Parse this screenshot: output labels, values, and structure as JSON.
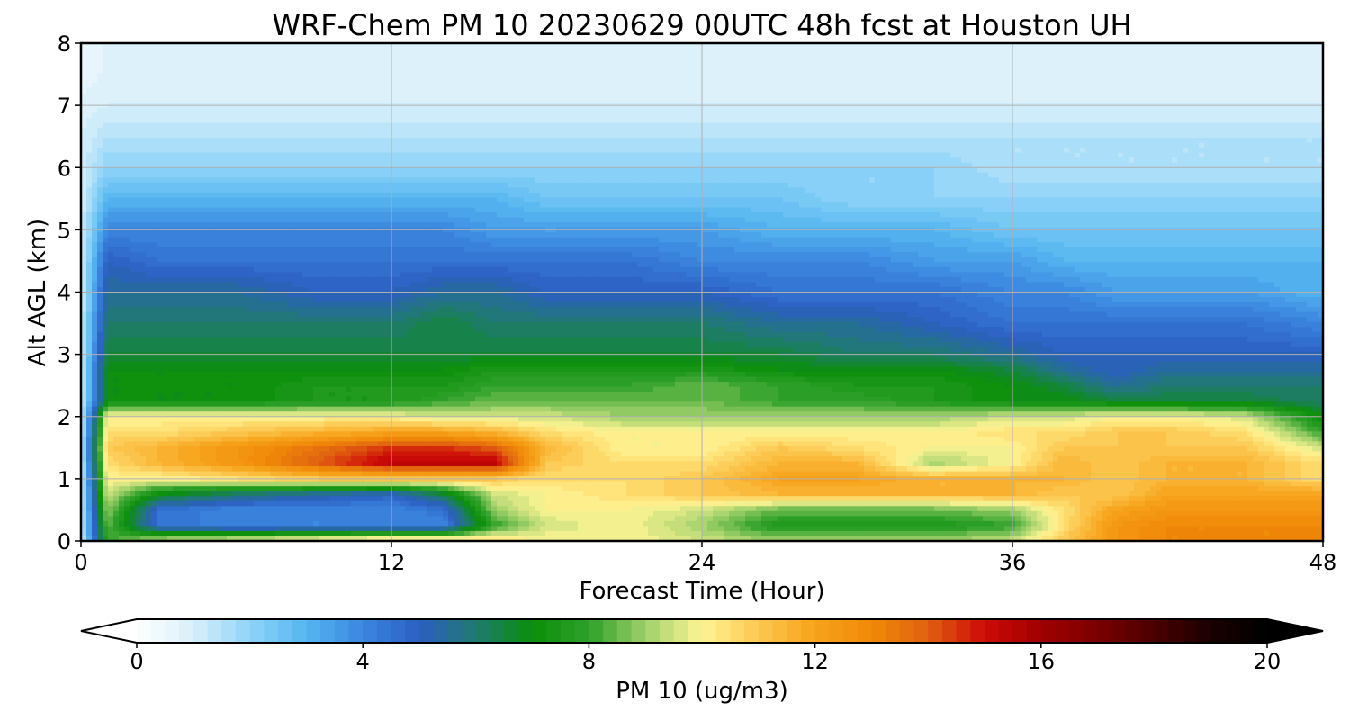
{
  "chart_data": {
    "type": "heatmap",
    "subtype": "filled-contour",
    "title": "WRF-Chem PM 10  20230629 00UTC 48h fcst at Houston UH",
    "xlabel": "Forecast Time (Hour)",
    "ylabel": "Alt AGL (km)",
    "xlim": [
      0,
      48
    ],
    "ylim": [
      0,
      8
    ],
    "xticks": [
      0,
      12,
      24,
      36,
      48
    ],
    "yticks": [
      0,
      1,
      2,
      3,
      4,
      5,
      6,
      7,
      8
    ],
    "grid": true,
    "x": [
      0,
      1,
      3,
      6,
      9,
      12,
      14,
      16,
      18,
      21,
      24,
      27,
      30,
      33,
      36,
      38,
      40,
      42,
      45,
      48
    ],
    "y": [
      0,
      0.25,
      0.5,
      0.75,
      1,
      1.25,
      1.5,
      1.75,
      2,
      2.25,
      2.5,
      2.75,
      3,
      3.5,
      4,
      4.5,
      5,
      5.5,
      6,
      6.5,
      7,
      7.5,
      8
    ],
    "z": [
      [
        1,
        8,
        9.5,
        10,
        10.5,
        11,
        11,
        10.5,
        10,
        10,
        9.5,
        9,
        9,
        9,
        9.5,
        11,
        12.5,
        13,
        13,
        13
      ],
      [
        1,
        8.5,
        4.5,
        4,
        4,
        4,
        4,
        8,
        9.5,
        10,
        9,
        7.5,
        7.5,
        7.5,
        8,
        10.5,
        12.5,
        13,
        13,
        13
      ],
      [
        1,
        9,
        4.5,
        4,
        4,
        4,
        4.5,
        9,
        10,
        10,
        9.5,
        8.5,
        8.5,
        8.5,
        9,
        10.5,
        12,
        12.5,
        12.5,
        12.5
      ],
      [
        1,
        9.5,
        7,
        6,
        5.5,
        5,
        6.5,
        9.5,
        10,
        10.5,
        11,
        11.5,
        11.5,
        11.5,
        11.5,
        11,
        11,
        12,
        12,
        12
      ],
      [
        1,
        10,
        10,
        10.5,
        11,
        11,
        11,
        11,
        10.5,
        10.5,
        11,
        12,
        12,
        11.5,
        11.5,
        11.5,
        11,
        11.5,
        11.5,
        10.5
      ],
      [
        1,
        10.5,
        11.5,
        12.5,
        14,
        15.5,
        15.5,
        15.5,
        11,
        10.5,
        10.5,
        11.5,
        11.5,
        9,
        10,
        11.5,
        11,
        11.5,
        11.5,
        10.5
      ],
      [
        1,
        11,
        11.5,
        12.5,
        13.5,
        14.5,
        14.5,
        14,
        11.5,
        10,
        10,
        11,
        10.5,
        10,
        10,
        11,
        11,
        11,
        11,
        9.5
      ],
      [
        1,
        10.5,
        10.5,
        11,
        11.5,
        12,
        12,
        11.5,
        10.5,
        10,
        10,
        10,
        10,
        10,
        10.5,
        10.5,
        11,
        11,
        10.5,
        8
      ],
      [
        1,
        10,
        10,
        10,
        10,
        10,
        9.5,
        9.5,
        9.5,
        9,
        9,
        9,
        9,
        9,
        9.5,
        9.5,
        10,
        10,
        9.5,
        7
      ],
      [
        1,
        7,
        7,
        7,
        7.5,
        7.5,
        8,
        8.5,
        8.5,
        8.5,
        8.5,
        8,
        8,
        7.5,
        7,
        7,
        6.5,
        6.5,
        6.5,
        6
      ],
      [
        1,
        7,
        7,
        7,
        7.5,
        7.5,
        7.5,
        8,
        8,
        8,
        8.5,
        8,
        7.5,
        7.5,
        7,
        6.5,
        5.5,
        6,
        6,
        6
      ],
      [
        1,
        7,
        7,
        7,
        7,
        7,
        7,
        7.5,
        7.5,
        7.5,
        7.5,
        7,
        7,
        7,
        6.5,
        5.5,
        5,
        5.5,
        5.5,
        5.5
      ],
      [
        1,
        6.5,
        6.5,
        6.5,
        6.5,
        6.5,
        6.5,
        6.5,
        6.5,
        6.5,
        6.5,
        6.5,
        6,
        6,
        5.5,
        5,
        5,
        5,
        5,
        5
      ],
      [
        1,
        6,
        6,
        6,
        6,
        6,
        6.5,
        6,
        6,
        6,
        6,
        5.5,
        5.5,
        5,
        4.5,
        4.5,
        4.5,
        4.5,
        4.5,
        4
      ],
      [
        1,
        5.5,
        5.5,
        5.5,
        5,
        5,
        5.5,
        5.5,
        5,
        5,
        5,
        4.5,
        4.5,
        4.5,
        4,
        4,
        3.5,
        3.5,
        3.5,
        3
      ],
      [
        1,
        5,
        4.5,
        4.5,
        4.5,
        4.5,
        4.5,
        4.5,
        4.5,
        4.5,
        4,
        4,
        4,
        3.5,
        3.5,
        3,
        3,
        3,
        3,
        3
      ],
      [
        1,
        4,
        4,
        4,
        4,
        4,
        4,
        3.5,
        3.5,
        3.5,
        3.5,
        3,
        3,
        3,
        2.5,
        2.5,
        2.5,
        2.5,
        2.5,
        2.5
      ],
      [
        1,
        3,
        3,
        3,
        3,
        3,
        3,
        3,
        2.5,
        2.5,
        2.5,
        2.5,
        2,
        2,
        2,
        2,
        2,
        2,
        2,
        2
      ],
      [
        1,
        2,
        2,
        2,
        2,
        2,
        2,
        2,
        2,
        2,
        2,
        2,
        2,
        2,
        1.5,
        1.5,
        1.5,
        1.5,
        1.5,
        1.5
      ],
      [
        1,
        1.5,
        1.5,
        1.5,
        1.5,
        1.5,
        1.5,
        1.5,
        1.5,
        1.5,
        1.5,
        1.5,
        1.5,
        1.5,
        1.5,
        1.5,
        1.5,
        1.5,
        1.5,
        1.5
      ],
      [
        0.8,
        1,
        1,
        1,
        1,
        1,
        1,
        1,
        1,
        1,
        1,
        1,
        1,
        1,
        1,
        1,
        1,
        1,
        1,
        1
      ],
      [
        0.6,
        0.8,
        0.8,
        0.8,
        0.8,
        0.8,
        0.8,
        0.8,
        0.8,
        0.8,
        0.8,
        0.8,
        0.8,
        0.8,
        0.8,
        0.8,
        0.8,
        0.8,
        0.8,
        0.8
      ],
      [
        0.6,
        0.8,
        0.8,
        0.8,
        0.8,
        0.8,
        0.8,
        0.8,
        0.8,
        0.8,
        0.8,
        0.8,
        0.8,
        0.8,
        0.8,
        0.8,
        0.8,
        0.8,
        0.8,
        0.8
      ]
    ],
    "colorbar": {
      "label": "PM 10  (ug/m3)",
      "min": 0,
      "max": 20,
      "ticks": [
        0,
        4,
        8,
        12,
        16,
        20
      ],
      "extend": "both",
      "levels": 80,
      "color_anchors": [
        {
          "v": 0,
          "c": "#ffffff"
        },
        {
          "v": 1,
          "c": "#d8effa"
        },
        {
          "v": 2,
          "c": "#8fd4f8"
        },
        {
          "v": 3,
          "c": "#55b6f0"
        },
        {
          "v": 4,
          "c": "#3b86df"
        },
        {
          "v": 5,
          "c": "#2c5fc2"
        },
        {
          "v": 6,
          "c": "#1f7a6e"
        },
        {
          "v": 7,
          "c": "#0a8f0a"
        },
        {
          "v": 8,
          "c": "#2ea02a"
        },
        {
          "v": 9,
          "c": "#9fd06a"
        },
        {
          "v": 10,
          "c": "#fff494"
        },
        {
          "v": 11,
          "c": "#fcc850"
        },
        {
          "v": 12,
          "c": "#f7a21a"
        },
        {
          "v": 13,
          "c": "#f08a08"
        },
        {
          "v": 14,
          "c": "#e06010"
        },
        {
          "v": 15,
          "c": "#cc0a08"
        },
        {
          "v": 16,
          "c": "#a00000"
        },
        {
          "v": 17,
          "c": "#7a0000"
        },
        {
          "v": 18,
          "c": "#4a0000"
        },
        {
          "v": 19,
          "c": "#1a0000"
        },
        {
          "v": 20,
          "c": "#000000"
        }
      ]
    }
  }
}
